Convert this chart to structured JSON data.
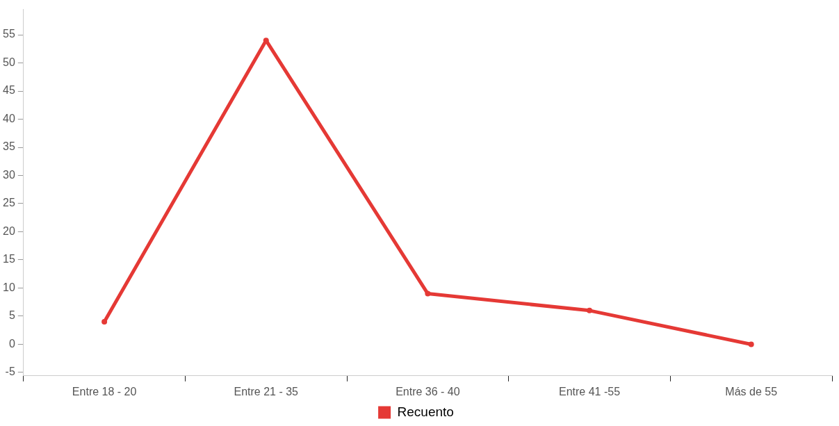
{
  "chart_data": {
    "type": "line",
    "categories": [
      "Entre 18 - 20",
      "Entre 21 - 35",
      "Entre 36 - 40",
      "Entre 41 -55",
      "Más de 55"
    ],
    "series": [
      {
        "name": "Recuento",
        "color": "#e53935",
        "values": [
          4,
          54,
          9,
          6,
          0
        ]
      }
    ],
    "ylim": [
      -5.6,
      59.5
    ],
    "yticks": [
      -5,
      0,
      5,
      10,
      15,
      20,
      25,
      30,
      35,
      40,
      45,
      50,
      55
    ],
    "grid": false,
    "legend": "bottom",
    "marker": "circle",
    "line_style": "solid"
  }
}
